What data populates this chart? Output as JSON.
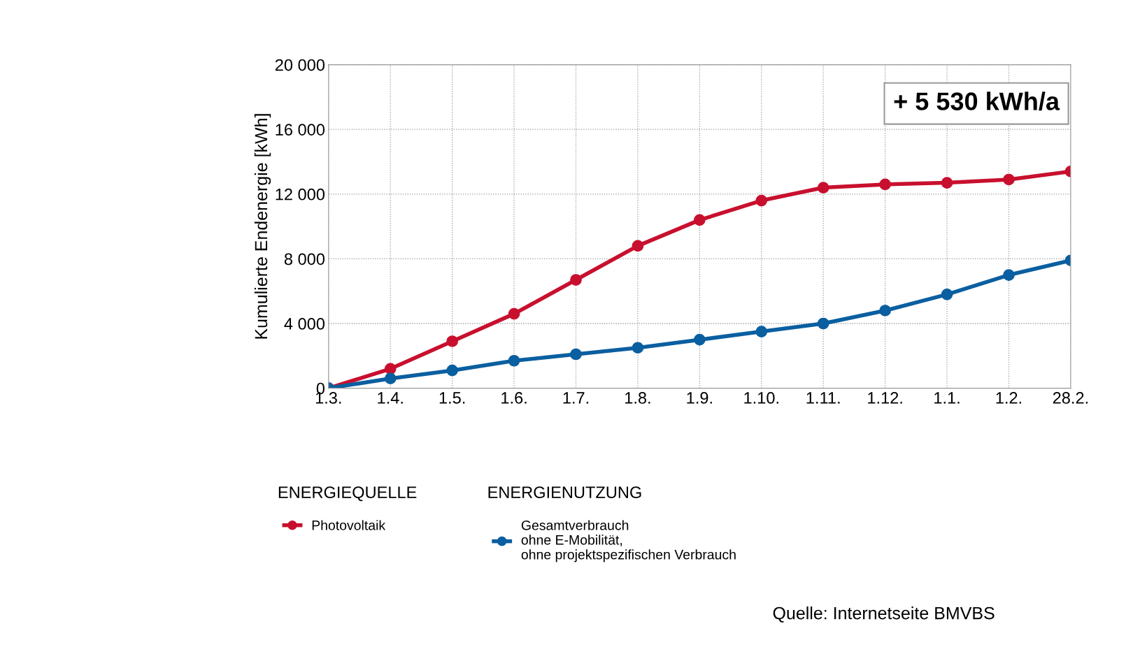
{
  "chart_data": {
    "type": "line",
    "ylabel": "Kumulierte Endenergie [kWh]",
    "categories": [
      "1.3.",
      "1.4.",
      "1.5.",
      "1.6.",
      "1.7.",
      "1.8.",
      "1.9.",
      "1.10.",
      "1.11.",
      "1.12.",
      "1.1.",
      "1.2.",
      "28.2."
    ],
    "series": [
      {
        "name": "Photovoltaik",
        "color": "#c8102e",
        "values": [
          0,
          1200,
          2900,
          4600,
          6700,
          8800,
          10400,
          11600,
          12400,
          12600,
          12700,
          12900,
          13400
        ]
      },
      {
        "name": "Gesamtverbrauch\nohne E-Mobilität,\nohne projektspezifischen Verbrauch",
        "color": "#0a5fa0",
        "values": [
          0,
          600,
          1100,
          1700,
          2100,
          2500,
          3000,
          3500,
          4000,
          4800,
          5800,
          7000,
          7900
        ]
      }
    ],
    "ylim": [
      0,
      20000
    ],
    "yticks": [
      0,
      {
        "value": 4000,
        "label": "4 000"
      },
      {
        "value": 8000,
        "label": "8 000"
      },
      {
        "value": 12000,
        "label": "12 000"
      },
      {
        "value": 16000,
        "label": "16 000"
      },
      {
        "value": 20000,
        "label": "20 000"
      }
    ],
    "grid": true,
    "legend": "bottom",
    "marker": "circle",
    "line_style": "solid",
    "annotations": [
      "+ 5 530 kWh/a",
      "ENERGIEQUELLE",
      "ENERGIENUTZUNG",
      "Quelle: Internetseite BMVBS"
    ]
  }
}
